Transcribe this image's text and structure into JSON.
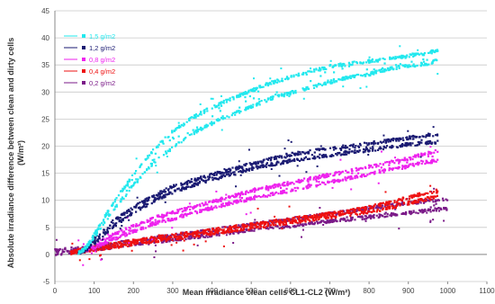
{
  "chart_data": {
    "type": "scatter",
    "xlabel": "Mean irradiance clean cells CL1-CL2 (W/m²)",
    "ylabel_line1": "Absolute irradiance difference between clean and dirty cells",
    "ylabel_line2": "(W/m²)",
    "xlim": [
      0,
      1100
    ],
    "ylim": [
      -5,
      45
    ],
    "x_ticks": [
      0,
      100,
      200,
      300,
      400,
      500,
      600,
      700,
      800,
      900,
      1000,
      1100
    ],
    "y_ticks": [
      -5,
      0,
      5,
      10,
      15,
      20,
      25,
      30,
      35,
      40,
      45
    ],
    "grid": "horizontal",
    "legend_position": "top-left",
    "series": [
      {
        "name": "1,5 g/m2",
        "color": "#22e8ee",
        "x": [
          60,
          80,
          100,
          150,
          200,
          250,
          300,
          350,
          400,
          450,
          500,
          550,
          600,
          650,
          700,
          750,
          800,
          850,
          900,
          950,
          975
        ],
        "upper": [
          0.5,
          1.5,
          4.0,
          10.0,
          15.0,
          19.5,
          23.0,
          25.5,
          27.5,
          29.0,
          30.5,
          32.0,
          33.0,
          34.0,
          35.0,
          35.5,
          36.0,
          36.5,
          37.0,
          37.5,
          38.0
        ],
        "lower": [
          0.0,
          1.0,
          3.0,
          8.0,
          12.5,
          16.5,
          19.5,
          22.0,
          24.0,
          25.5,
          27.0,
          28.5,
          29.5,
          30.5,
          31.5,
          32.5,
          33.0,
          34.0,
          34.5,
          35.0,
          35.5
        ]
      },
      {
        "name": "1,2 g/m2",
        "color": "#1a1a72",
        "x": [
          60,
          80,
          100,
          150,
          200,
          250,
          300,
          350,
          400,
          450,
          500,
          550,
          600,
          650,
          700,
          750,
          800,
          850,
          900,
          950,
          975
        ],
        "upper": [
          0.5,
          1.2,
          3.0,
          6.5,
          9.0,
          11.0,
          12.8,
          14.0,
          15.0,
          16.0,
          17.0,
          18.0,
          18.8,
          19.3,
          19.8,
          20.3,
          20.8,
          21.3,
          21.8,
          22.3,
          22.5
        ],
        "lower": [
          0.0,
          0.6,
          1.8,
          5.0,
          7.5,
          9.5,
          11.2,
          12.5,
          13.5,
          14.5,
          15.5,
          16.3,
          17.0,
          17.5,
          18.0,
          18.5,
          19.0,
          19.5,
          20.0,
          20.3,
          20.5
        ]
      },
      {
        "name": "0,8 g/m2",
        "color": "#ee22ee",
        "x": [
          60,
          100,
          150,
          200,
          250,
          300,
          350,
          400,
          450,
          500,
          550,
          600,
          650,
          700,
          750,
          800,
          850,
          900,
          950,
          975
        ],
        "upper": [
          0.8,
          2.0,
          4.0,
          5.5,
          7.0,
          8.0,
          9.0,
          10.0,
          11.0,
          12.0,
          12.8,
          13.5,
          14.3,
          15.0,
          15.7,
          16.5,
          17.2,
          18.0,
          19.0,
          19.5
        ],
        "lower": [
          0.0,
          1.0,
          2.5,
          4.0,
          5.3,
          6.3,
          7.3,
          8.3,
          9.2,
          10.0,
          10.8,
          11.5,
          12.3,
          13.0,
          13.8,
          14.5,
          15.3,
          16.0,
          16.8,
          17.0
        ]
      },
      {
        "name": "0,4 g/m2",
        "color": "#ee1111",
        "x": [
          40,
          100,
          150,
          200,
          250,
          300,
          350,
          400,
          450,
          500,
          550,
          600,
          650,
          700,
          750,
          800,
          850,
          900,
          950,
          975
        ],
        "upper": [
          0.8,
          1.6,
          2.2,
          2.8,
          3.3,
          3.8,
          4.3,
          4.8,
          5.3,
          5.8,
          6.3,
          6.8,
          7.3,
          7.8,
          8.3,
          9.0,
          9.8,
          10.8,
          11.8,
          12.0
        ],
        "lower": [
          0.0,
          0.6,
          1.1,
          1.6,
          2.1,
          2.6,
          3.1,
          3.6,
          4.1,
          4.6,
          5.1,
          5.6,
          6.1,
          6.6,
          7.1,
          7.6,
          8.3,
          9.2,
          10.0,
          10.3
        ]
      },
      {
        "name": "0,2 g/m2",
        "color": "#7b1b88",
        "x": [
          0,
          100,
          200,
          300,
          400,
          500,
          600,
          700,
          800,
          900,
          1000
        ],
        "upper": [
          1.0,
          1.8,
          2.8,
          3.8,
          4.8,
          5.8,
          6.8,
          7.8,
          8.8,
          9.8,
          10.5
        ],
        "lower": [
          -0.2,
          0.6,
          1.5,
          2.4,
          3.3,
          4.2,
          5.0,
          5.8,
          6.6,
          7.4,
          8.2
        ]
      }
    ]
  }
}
